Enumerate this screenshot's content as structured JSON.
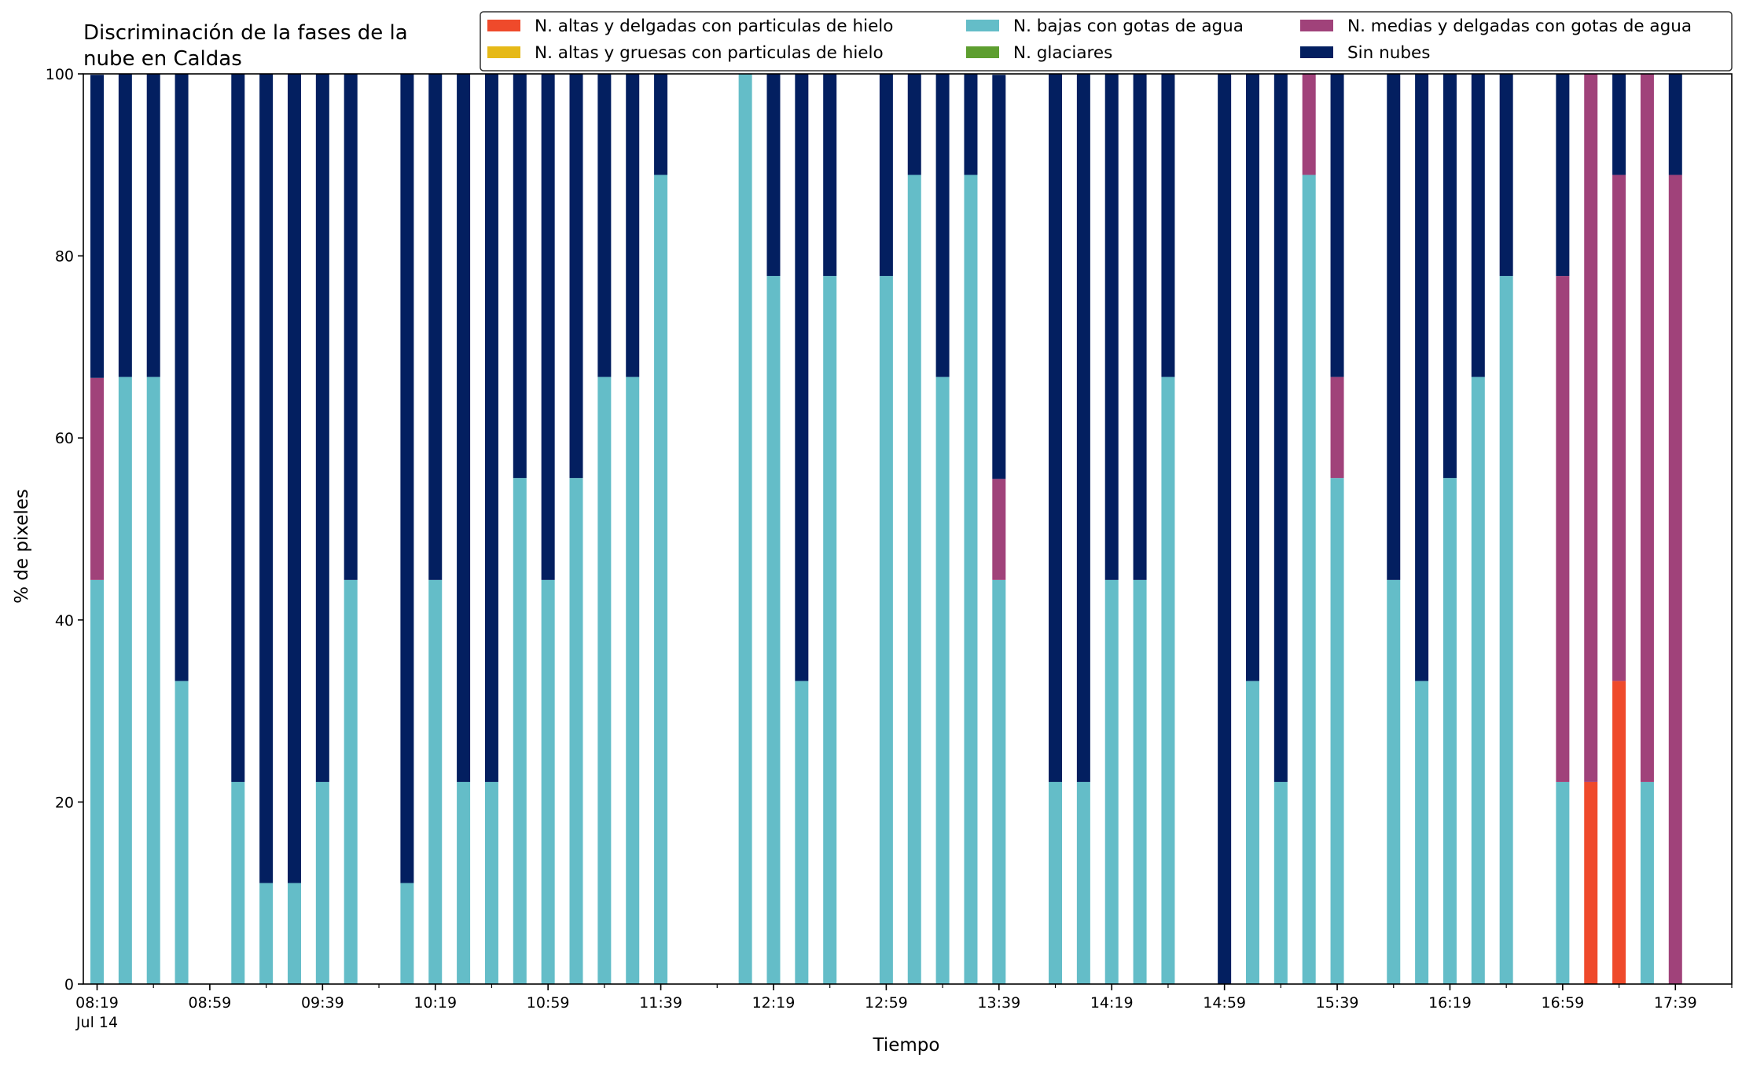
{
  "chart_data": {
    "type": "bar",
    "stacked": true,
    "title_line1": "Discriminación de la fases de la",
    "title_line2": "nube en Caldas",
    "xlabel": "Tiempo",
    "ylabel": "% de pixeles",
    "ylim": [
      0,
      100
    ],
    "yticks": [
      0,
      20,
      40,
      60,
      80,
      100
    ],
    "xlim": [
      "08:19",
      "17:59"
    ],
    "slot_minutes": 10,
    "xtick_labels": [
      {
        "time": "08:19",
        "label": "08:19",
        "sublabel": "Jul 14"
      },
      {
        "time": "08:59",
        "label": "08:59"
      },
      {
        "time": "09:39",
        "label": "09:39"
      },
      {
        "time": "10:19",
        "label": "10:19"
      },
      {
        "time": "10:59",
        "label": "10:59"
      },
      {
        "time": "11:39",
        "label": "11:39"
      },
      {
        "time": "12:19",
        "label": "12:19"
      },
      {
        "time": "12:59",
        "label": "12:59"
      },
      {
        "time": "13:39",
        "label": "13:39"
      },
      {
        "time": "14:19",
        "label": "14:19"
      },
      {
        "time": "14:59",
        "label": "14:59"
      },
      {
        "time": "15:39",
        "label": "15:39"
      },
      {
        "time": "16:19",
        "label": "16:19"
      },
      {
        "time": "16:59",
        "label": "16:59"
      },
      {
        "time": "17:39",
        "label": "17:39"
      }
    ],
    "grid": false,
    "legend_position": "top-right",
    "legend_columns": 3,
    "legend": [
      {
        "name": "N. altas y delgadas con particulas de hielo",
        "color": "#ef4a2b"
      },
      {
        "name": "N. altas y gruesas con particulas de hielo",
        "color": "#e6b917"
      },
      {
        "name": "N. bajas con gotas de agua",
        "color": "#64bdc8"
      },
      {
        "name": "N. glaciares",
        "color": "#5d9e2f"
      },
      {
        "name": "N. medias y delgadas con gotas de agua",
        "color": "#a0427a"
      },
      {
        "name": "Sin nubes",
        "color": "#031f60"
      }
    ],
    "stack_order": [
      "N. altas y delgadas con particulas de hielo",
      "N. altas y gruesas con particulas de hielo",
      "N. bajas con gotas de agua",
      "N. glaciares",
      "N. medias y delgadas con gotas de agua",
      "Sin nubes"
    ],
    "bars": [
      {
        "time": "08:19",
        "values": [
          0,
          0,
          44.4,
          0,
          22.2,
          33.3
        ]
      },
      {
        "time": "08:29",
        "values": [
          0,
          0,
          66.7,
          0,
          0,
          33.3
        ]
      },
      {
        "time": "08:39",
        "values": [
          0,
          0,
          66.7,
          0,
          0,
          33.3
        ]
      },
      {
        "time": "08:49",
        "values": [
          0,
          0,
          33.3,
          0,
          0,
          66.7
        ]
      },
      {
        "time": "09:09",
        "values": [
          0,
          0,
          22.2,
          0,
          0,
          77.8
        ]
      },
      {
        "time": "09:19",
        "values": [
          0,
          0,
          11.1,
          0,
          0,
          88.9
        ]
      },
      {
        "time": "09:29",
        "values": [
          0,
          0,
          11.1,
          0,
          0,
          88.9
        ]
      },
      {
        "time": "09:39",
        "values": [
          0,
          0,
          22.2,
          0,
          0,
          77.8
        ]
      },
      {
        "time": "09:49",
        "values": [
          0,
          0,
          44.4,
          0,
          0,
          55.6
        ]
      },
      {
        "time": "10:09",
        "values": [
          0,
          0,
          11.1,
          0,
          0,
          88.9
        ]
      },
      {
        "time": "10:19",
        "values": [
          0,
          0,
          44.4,
          0,
          0,
          55.6
        ]
      },
      {
        "time": "10:29",
        "values": [
          0,
          0,
          22.2,
          0,
          0,
          77.8
        ]
      },
      {
        "time": "10:39",
        "values": [
          0,
          0,
          22.2,
          0,
          0,
          77.8
        ]
      },
      {
        "time": "10:49",
        "values": [
          0,
          0,
          55.6,
          0,
          0,
          44.4
        ]
      },
      {
        "time": "10:59",
        "values": [
          0,
          0,
          44.4,
          0,
          0,
          55.6
        ]
      },
      {
        "time": "11:09",
        "values": [
          0,
          0,
          55.6,
          0,
          0,
          44.4
        ]
      },
      {
        "time": "11:19",
        "values": [
          0,
          0,
          66.7,
          0,
          0,
          33.3
        ]
      },
      {
        "time": "11:29",
        "values": [
          0,
          0,
          66.7,
          0,
          0,
          33.3
        ]
      },
      {
        "time": "11:39",
        "values": [
          0,
          0,
          88.9,
          0,
          0,
          11.1
        ]
      },
      {
        "time": "12:09",
        "values": [
          0,
          0,
          100,
          0,
          0,
          0
        ]
      },
      {
        "time": "12:19",
        "values": [
          0,
          0,
          77.8,
          0,
          0,
          22.2
        ]
      },
      {
        "time": "12:29",
        "values": [
          0,
          0,
          33.3,
          0,
          0,
          66.7
        ]
      },
      {
        "time": "12:39",
        "values": [
          0,
          0,
          77.8,
          0,
          0,
          22.2
        ]
      },
      {
        "time": "12:59",
        "values": [
          0,
          0,
          77.8,
          0,
          0,
          22.2
        ]
      },
      {
        "time": "13:09",
        "values": [
          0,
          0,
          88.9,
          0,
          0,
          11.1
        ]
      },
      {
        "time": "13:19",
        "values": [
          0,
          0,
          66.7,
          0,
          0,
          33.3
        ]
      },
      {
        "time": "13:29",
        "values": [
          0,
          0,
          88.9,
          0,
          0,
          11.1
        ]
      },
      {
        "time": "13:39",
        "values": [
          0,
          0,
          44.4,
          0,
          11.1,
          44.4
        ]
      },
      {
        "time": "13:59",
        "values": [
          0,
          0,
          22.2,
          0,
          0,
          77.8
        ]
      },
      {
        "time": "14:09",
        "values": [
          0,
          0,
          22.2,
          0,
          0,
          77.8
        ]
      },
      {
        "time": "14:19",
        "values": [
          0,
          0,
          44.4,
          0,
          0,
          55.6
        ]
      },
      {
        "time": "14:29",
        "values": [
          0,
          0,
          44.4,
          0,
          0,
          55.6
        ]
      },
      {
        "time": "14:39",
        "values": [
          0,
          0,
          66.7,
          0,
          0,
          33.3
        ]
      },
      {
        "time": "14:59",
        "values": [
          0,
          0,
          0,
          0,
          0,
          100
        ]
      },
      {
        "time": "15:09",
        "values": [
          0,
          0,
          33.3,
          0,
          0,
          66.7
        ]
      },
      {
        "time": "15:19",
        "values": [
          0,
          0,
          22.2,
          0,
          0,
          77.8
        ]
      },
      {
        "time": "15:29",
        "values": [
          0,
          0,
          88.9,
          0,
          11.1,
          0
        ]
      },
      {
        "time": "15:39",
        "values": [
          0,
          0,
          55.6,
          0,
          11.1,
          33.3
        ]
      },
      {
        "time": "15:59",
        "values": [
          0,
          0,
          44.4,
          0,
          0,
          55.6
        ]
      },
      {
        "time": "16:09",
        "values": [
          0,
          0,
          33.3,
          0,
          0,
          66.7
        ]
      },
      {
        "time": "16:19",
        "values": [
          0,
          0,
          55.6,
          0,
          0,
          44.4
        ]
      },
      {
        "time": "16:29",
        "values": [
          0,
          0,
          66.7,
          0,
          0,
          33.3
        ]
      },
      {
        "time": "16:39",
        "values": [
          0,
          0,
          77.8,
          0,
          0,
          22.2
        ]
      },
      {
        "time": "16:59",
        "values": [
          0,
          0,
          22.2,
          0,
          55.6,
          22.2
        ]
      },
      {
        "time": "17:09",
        "values": [
          22.2,
          0,
          0,
          0,
          77.8,
          0
        ]
      },
      {
        "time": "17:19",
        "values": [
          33.3,
          0,
          0,
          0,
          55.6,
          11.1
        ]
      },
      {
        "time": "17:29",
        "values": [
          0,
          0,
          22.2,
          0,
          77.8,
          0
        ]
      },
      {
        "time": "17:39",
        "values": [
          0,
          0,
          0,
          0,
          88.9,
          11.1
        ]
      }
    ]
  }
}
